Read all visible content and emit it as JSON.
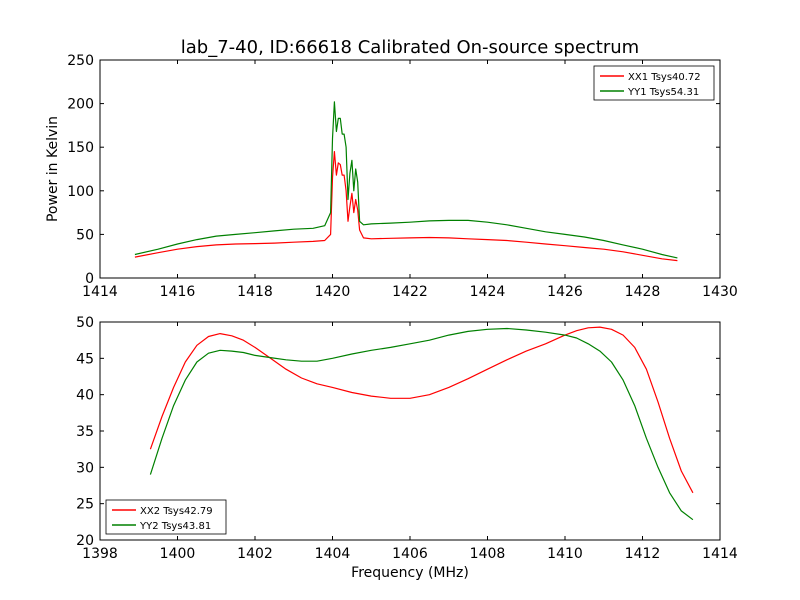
{
  "title": "lab_7-40, ID:66618 Calibrated On-source spectrum",
  "chart_data": [
    {
      "type": "line",
      "title": "lab_7-40, ID:66618 Calibrated On-source spectrum",
      "xlabel": "",
      "ylabel": "Power in Kelvin",
      "xlim": [
        1414,
        1430
      ],
      "ylim": [
        0,
        250
      ],
      "xticks": [
        "1414",
        "1416",
        "1418",
        "1420",
        "1422",
        "1424",
        "1426",
        "1428",
        "1430"
      ],
      "yticks": [
        "0",
        "50",
        "100",
        "150",
        "200",
        "250"
      ],
      "grid": false,
      "legend": "top-right",
      "series": [
        {
          "name": "XX1 Tsys40.72",
          "color": "#ff0000",
          "x": [
            1414.9,
            1415.5,
            1416.0,
            1416.5,
            1417.0,
            1417.5,
            1418.0,
            1418.5,
            1419.0,
            1419.5,
            1419.8,
            1419.95,
            1420.0,
            1420.05,
            1420.1,
            1420.15,
            1420.2,
            1420.25,
            1420.3,
            1420.35,
            1420.4,
            1420.45,
            1420.5,
            1420.55,
            1420.6,
            1420.65,
            1420.7,
            1420.8,
            1421.0,
            1421.5,
            1422.0,
            1422.5,
            1423.0,
            1423.5,
            1424.0,
            1424.5,
            1425.0,
            1425.5,
            1426.0,
            1426.5,
            1427.0,
            1427.5,
            1428.0,
            1428.5,
            1428.9
          ],
          "y": [
            24,
            29,
            33,
            36,
            38,
            39,
            39.5,
            40,
            41,
            42,
            43,
            50,
            115,
            145,
            118,
            132,
            130,
            118,
            118,
            100,
            65,
            82,
            97,
            75,
            90,
            78,
            55,
            46,
            45,
            45.5,
            46,
            46.5,
            46,
            45,
            44,
            43,
            41,
            39,
            37,
            35,
            33,
            30,
            26,
            22,
            20
          ]
        },
        {
          "name": "YY1 Tsys54.31",
          "color": "#008000",
          "x": [
            1414.9,
            1415.5,
            1416.0,
            1416.5,
            1417.0,
            1417.5,
            1418.0,
            1418.5,
            1419.0,
            1419.5,
            1419.8,
            1419.95,
            1420.0,
            1420.05,
            1420.1,
            1420.15,
            1420.2,
            1420.25,
            1420.3,
            1420.35,
            1420.4,
            1420.45,
            1420.5,
            1420.55,
            1420.6,
            1420.65,
            1420.7,
            1420.8,
            1421.0,
            1421.5,
            1422.0,
            1422.5,
            1423.0,
            1423.5,
            1424.0,
            1424.5,
            1425.0,
            1425.5,
            1426.0,
            1426.5,
            1427.0,
            1427.5,
            1428.0,
            1428.5,
            1428.9
          ],
          "y": [
            27,
            33,
            39,
            44,
            48,
            50,
            52,
            54,
            56,
            57,
            60,
            75,
            160,
            202,
            168,
            183,
            183,
            165,
            165,
            150,
            90,
            120,
            135,
            100,
            125,
            110,
            65,
            61,
            62,
            63,
            64,
            65.5,
            66,
            66,
            64,
            61,
            57,
            53,
            50,
            47,
            43,
            38,
            33,
            27,
            23
          ]
        }
      ]
    },
    {
      "type": "line",
      "title": "",
      "xlabel": "Frequency (MHz)",
      "ylabel": "",
      "xlim": [
        1398,
        1414
      ],
      "ylim": [
        20,
        50
      ],
      "xticks": [
        "1398",
        "1400",
        "1402",
        "1404",
        "1406",
        "1408",
        "1410",
        "1412",
        "1414"
      ],
      "yticks": [
        "20",
        "25",
        "30",
        "35",
        "40",
        "45",
        "50"
      ],
      "grid": false,
      "legend": "bottom-left",
      "series": [
        {
          "name": "XX2 Tsys42.79",
          "color": "#ff0000",
          "x": [
            1399.3,
            1399.6,
            1399.9,
            1400.2,
            1400.5,
            1400.8,
            1401.1,
            1401.4,
            1401.7,
            1402.0,
            1402.4,
            1402.8,
            1403.2,
            1403.6,
            1404.0,
            1404.5,
            1405.0,
            1405.5,
            1406.0,
            1406.5,
            1407.0,
            1407.5,
            1408.0,
            1408.5,
            1409.0,
            1409.5,
            1410.0,
            1410.3,
            1410.6,
            1410.9,
            1411.2,
            1411.5,
            1411.8,
            1412.1,
            1412.4,
            1412.7,
            1413.0,
            1413.3
          ],
          "y": [
            32.5,
            37,
            41,
            44.5,
            46.8,
            48,
            48.4,
            48.1,
            47.5,
            46.5,
            45,
            43.5,
            42.3,
            41.5,
            41,
            40.3,
            39.8,
            39.5,
            39.5,
            40,
            41,
            42.2,
            43.5,
            44.8,
            46,
            47,
            48.2,
            48.8,
            49.2,
            49.3,
            49,
            48.2,
            46.5,
            43.5,
            39,
            34,
            29.5,
            26.5
          ]
        },
        {
          "name": "YY2 Tsys43.81",
          "color": "#008000",
          "x": [
            1399.3,
            1399.6,
            1399.9,
            1400.2,
            1400.5,
            1400.8,
            1401.1,
            1401.4,
            1401.7,
            1402.0,
            1402.4,
            1402.8,
            1403.2,
            1403.6,
            1404.0,
            1404.5,
            1405.0,
            1405.5,
            1406.0,
            1406.5,
            1407.0,
            1407.5,
            1408.0,
            1408.5,
            1409.0,
            1409.5,
            1410.0,
            1410.3,
            1410.6,
            1410.9,
            1411.2,
            1411.5,
            1411.8,
            1412.1,
            1412.4,
            1412.7,
            1413.0,
            1413.3
          ],
          "y": [
            29,
            34,
            38.5,
            42,
            44.5,
            45.7,
            46.1,
            46,
            45.8,
            45.4,
            45.1,
            44.8,
            44.6,
            44.6,
            45,
            45.6,
            46.1,
            46.5,
            47,
            47.5,
            48.2,
            48.7,
            49,
            49.1,
            48.9,
            48.6,
            48.2,
            47.8,
            47,
            46,
            44.5,
            42,
            38.5,
            34,
            30,
            26.5,
            24,
            22.8
          ]
        }
      ]
    }
  ]
}
